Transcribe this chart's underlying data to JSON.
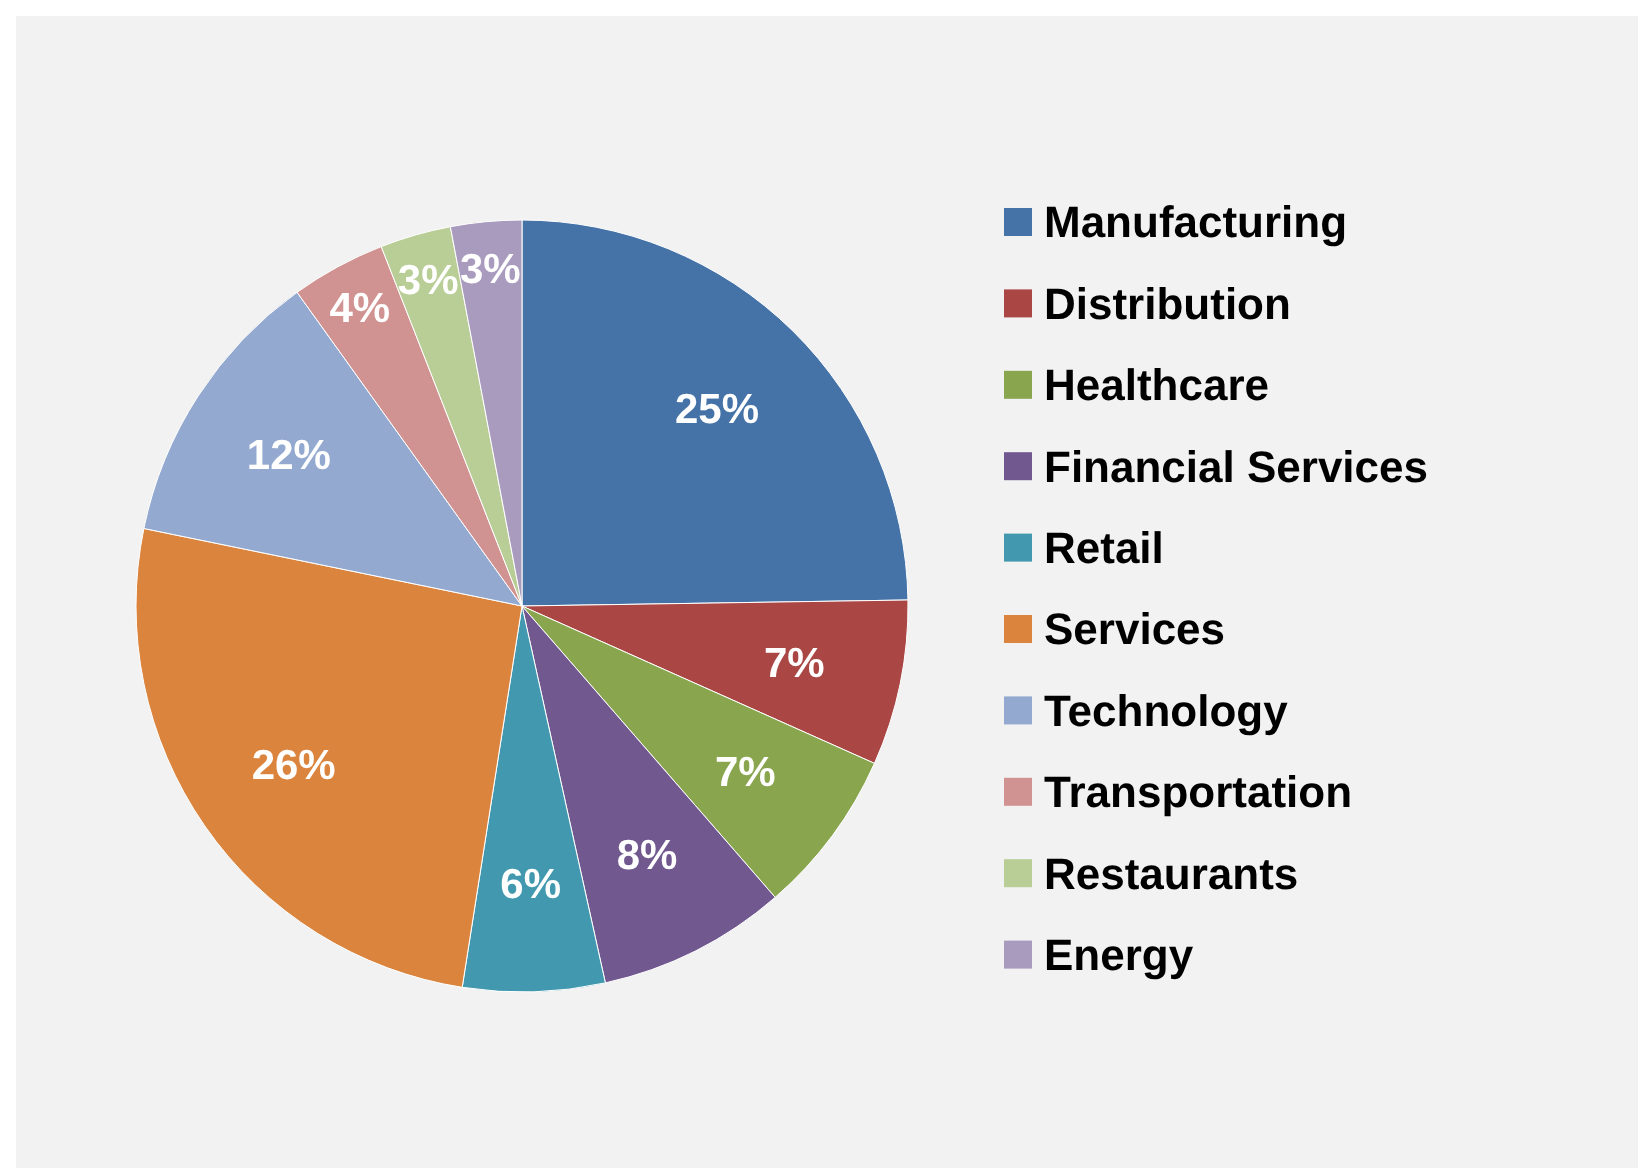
{
  "chart_data": {
    "type": "pie",
    "categories": [
      "Manufacturing",
      "Distribution",
      "Healthcare",
      "Financial Services",
      "Retail",
      "Services",
      "Technology",
      "Transportation",
      "Restaurants",
      "Energy"
    ],
    "values": [
      25,
      7,
      7,
      8,
      6,
      26,
      12,
      4,
      3,
      3
    ],
    "value_labels": [
      "25%",
      "7%",
      "7%",
      "8%",
      "6%",
      "26%",
      "12%",
      "4%",
      "3%",
      "3%"
    ],
    "colors": [
      "#4572a7",
      "#aa4643",
      "#89a54e",
      "#71588f",
      "#4198af",
      "#db843d",
      "#93a9cf",
      "#d19392",
      "#b9cd96",
      "#a99bbd"
    ],
    "legend": "right"
  }
}
